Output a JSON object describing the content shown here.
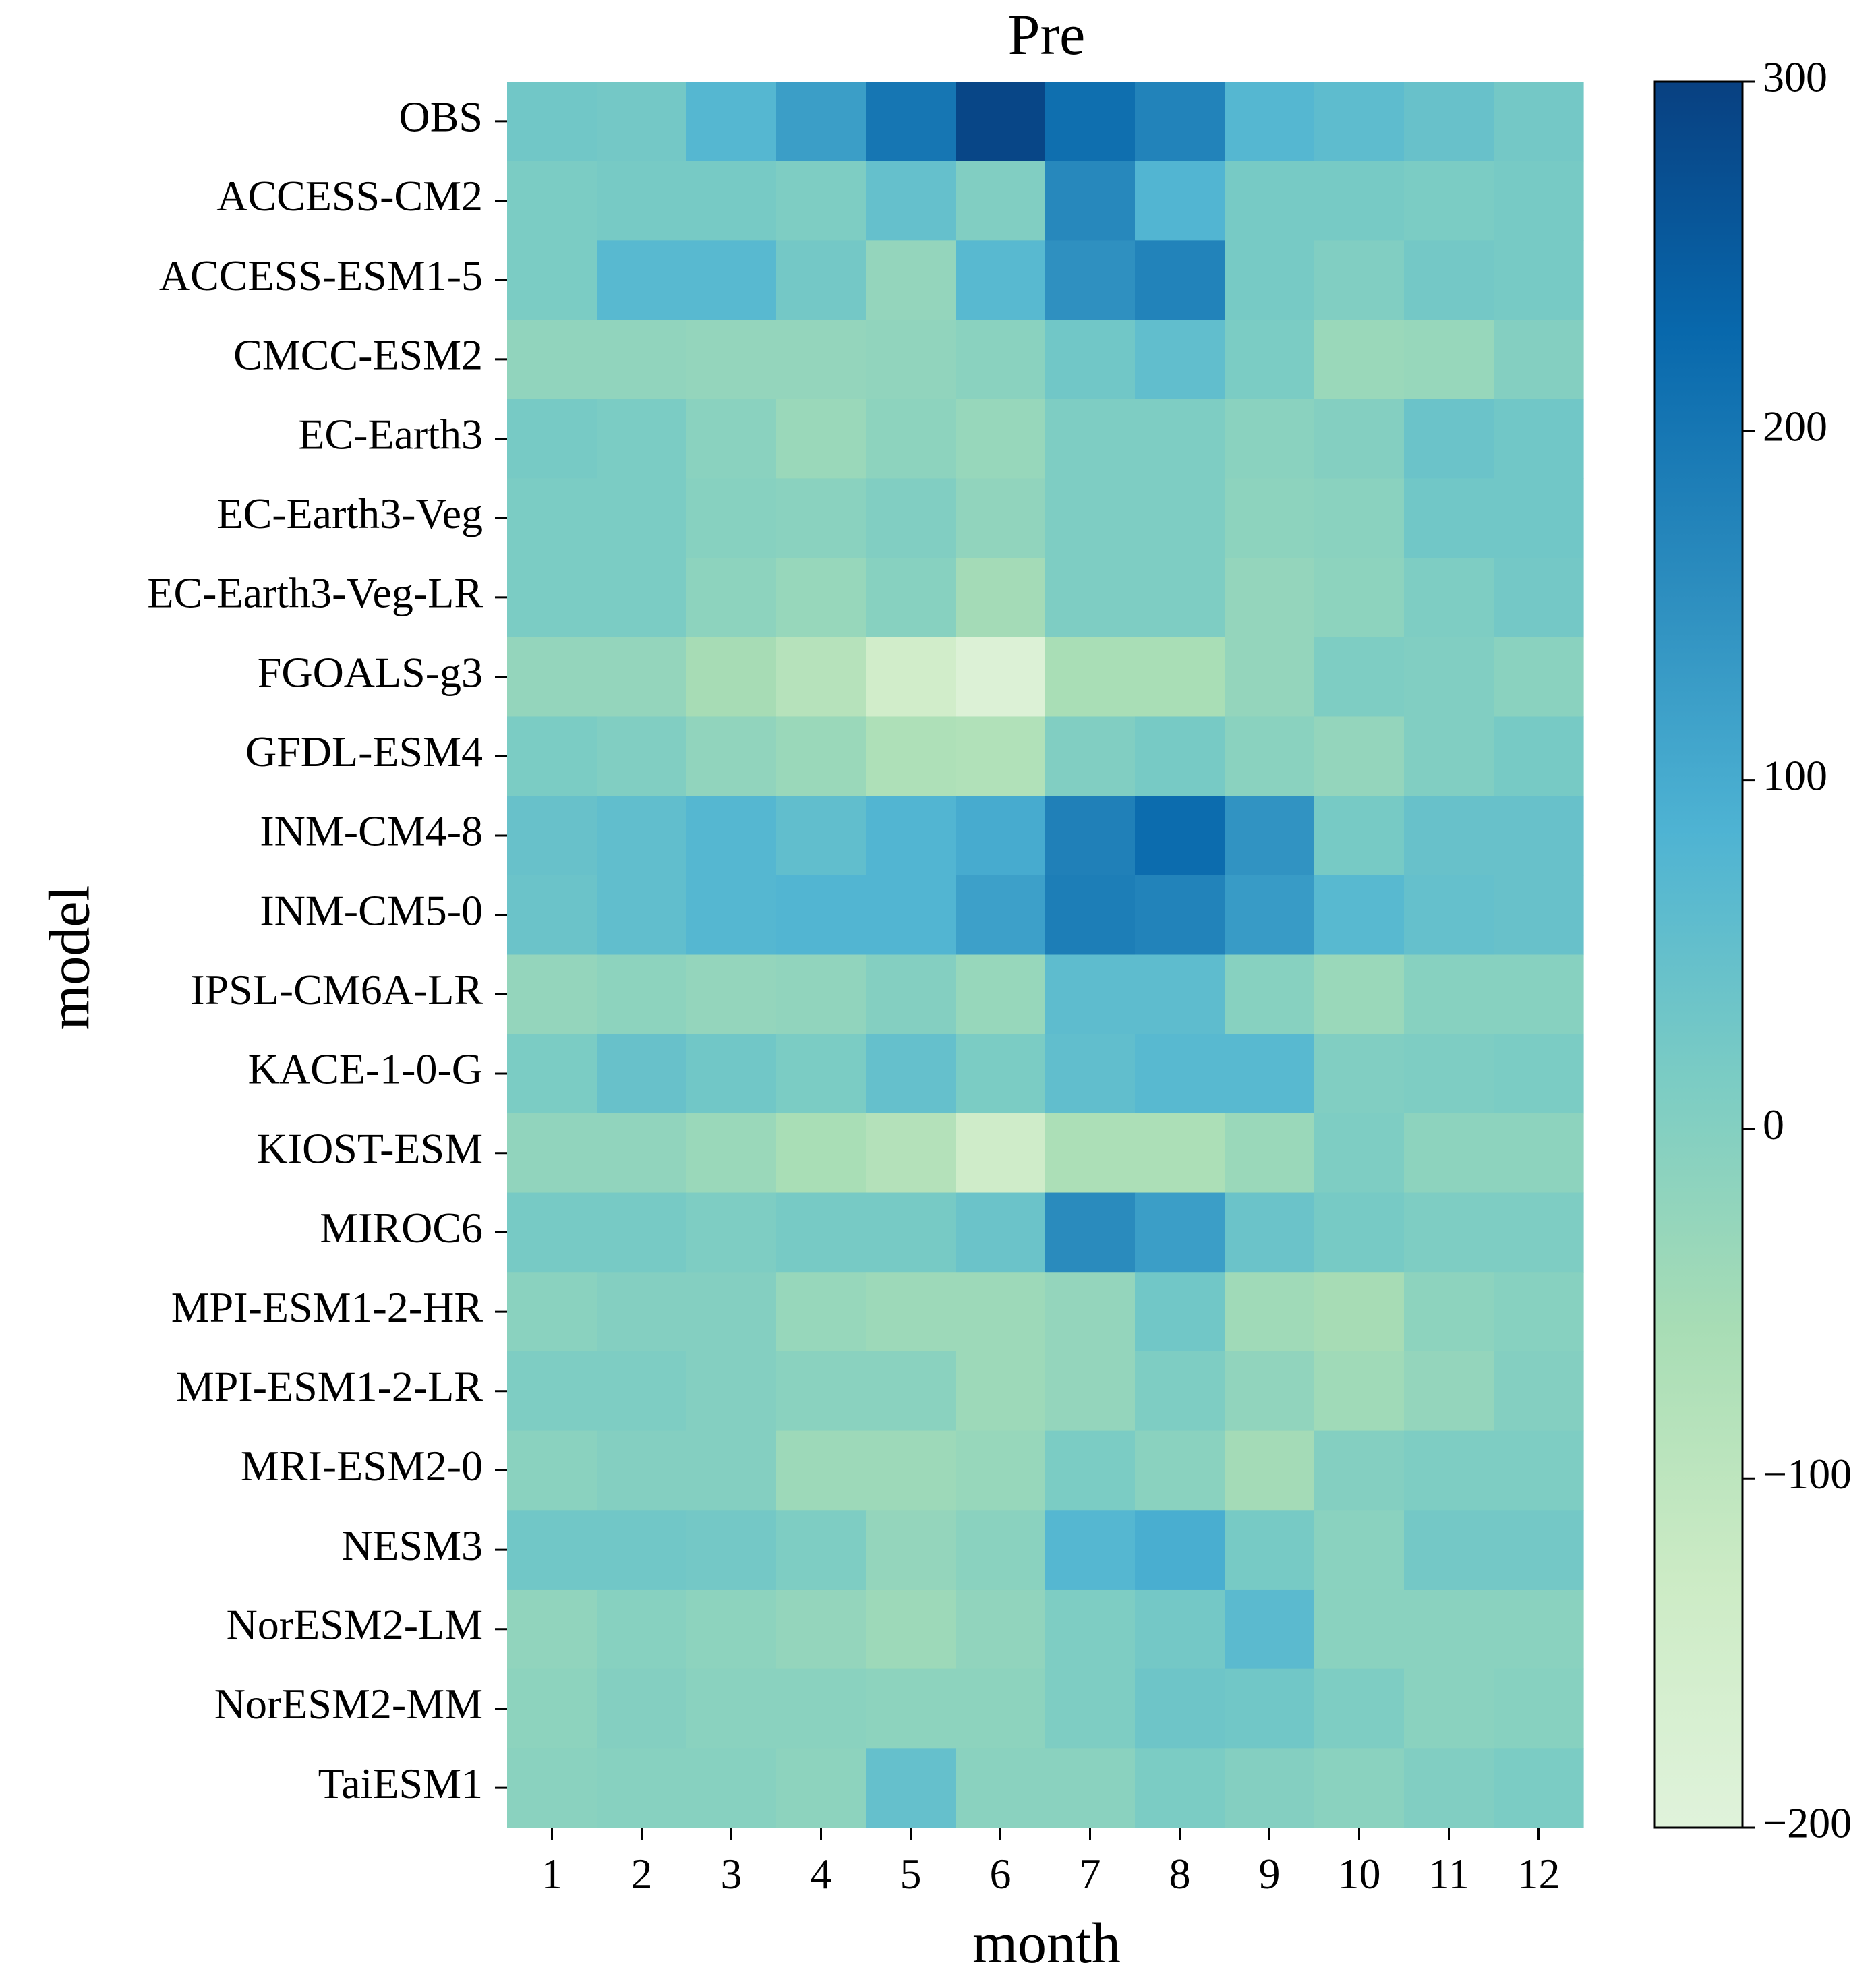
{
  "chart_data": {
    "type": "heatmap",
    "title": "Pre",
    "xlabel": "month",
    "ylabel": "model",
    "x_categories": [
      "1",
      "2",
      "3",
      "4",
      "5",
      "6",
      "7",
      "8",
      "9",
      "10",
      "11",
      "12"
    ],
    "y_categories": [
      "OBS",
      "ACCESS-CM2",
      "ACCESS-ESM1-5",
      "CMCC-ESM2",
      "EC-Earth3",
      "EC-Earth3-Veg",
      "EC-Earth3-Veg-LR",
      "FGOALS-g3",
      "GFDL-ESM4",
      "INM-CM4-8",
      "INM-CM5-0",
      "IPSL-CM6A-LR",
      "KACE-1-0-G",
      "KIOST-ESM",
      "MIROC6",
      "MPI-ESM1-2-HR",
      "MPI-ESM1-2-LR",
      "MRI-ESM2-0",
      "NESM3",
      "NorESM2-LM",
      "NorESM2-MM",
      "TaiESM1"
    ],
    "values": [
      [
        30,
        25,
        75,
        125,
        200,
        290,
        215,
        175,
        75,
        60,
        45,
        25
      ],
      [
        15,
        20,
        20,
        10,
        50,
        5,
        165,
        80,
        20,
        20,
        15,
        20
      ],
      [
        15,
        70,
        70,
        25,
        -25,
        70,
        150,
        175,
        20,
        5,
        25,
        20
      ],
      [
        -20,
        -20,
        -25,
        -25,
        -20,
        -10,
        30,
        55,
        15,
        -35,
        -30,
        0
      ],
      [
        20,
        15,
        -10,
        -35,
        -15,
        -30,
        10,
        10,
        -10,
        0,
        40,
        30
      ],
      [
        15,
        15,
        -5,
        -10,
        5,
        -20,
        10,
        10,
        -15,
        -10,
        30,
        30
      ],
      [
        15,
        15,
        -15,
        -30,
        -5,
        -50,
        10,
        10,
        -25,
        -15,
        10,
        25
      ],
      [
        -25,
        -25,
        -55,
        -85,
        -145,
        -185,
        -60,
        -60,
        -25,
        10,
        5,
        -10
      ],
      [
        15,
        5,
        -20,
        -35,
        -70,
        -75,
        5,
        20,
        -10,
        -25,
        5,
        20
      ],
      [
        45,
        55,
        75,
        55,
        80,
        100,
        180,
        220,
        145,
        20,
        45,
        45
      ],
      [
        40,
        55,
        75,
        80,
        80,
        120,
        185,
        175,
        130,
        70,
        50,
        45
      ],
      [
        -25,
        -15,
        -25,
        -20,
        0,
        -30,
        60,
        60,
        -5,
        -35,
        -5,
        -5
      ],
      [
        15,
        45,
        30,
        15,
        50,
        15,
        55,
        70,
        70,
        5,
        10,
        15
      ],
      [
        -20,
        -20,
        -35,
        -60,
        -80,
        -140,
        -65,
        -65,
        -35,
        10,
        -15,
        -15
      ],
      [
        20,
        20,
        10,
        20,
        20,
        40,
        160,
        125,
        40,
        20,
        10,
        10
      ],
      [
        -10,
        0,
        0,
        -30,
        -40,
        -40,
        -25,
        30,
        -45,
        -55,
        -15,
        -5
      ],
      [
        10,
        10,
        0,
        -10,
        -10,
        -40,
        -25,
        10,
        -20,
        -45,
        -25,
        0
      ],
      [
        -10,
        0,
        0,
        -40,
        -40,
        -30,
        15,
        -10,
        -50,
        0,
        10,
        10
      ],
      [
        30,
        30,
        25,
        10,
        -25,
        -10,
        75,
        95,
        20,
        -10,
        25,
        25
      ],
      [
        -20,
        -5,
        -15,
        -25,
        -40,
        -20,
        10,
        25,
        65,
        -10,
        -10,
        -10
      ],
      [
        -15,
        0,
        -10,
        -10,
        -15,
        -15,
        10,
        35,
        30,
        10,
        -10,
        -5
      ],
      [
        -10,
        -5,
        -5,
        -15,
        50,
        -10,
        -10,
        15,
        0,
        -10,
        5,
        15
      ]
    ],
    "colorbar": {
      "range": [
        -200,
        300
      ],
      "ticks": [
        300,
        200,
        100,
        0,
        -100,
        -200
      ],
      "tick_labels": [
        "300",
        "200",
        "100",
        "0",
        "−100",
        "−200"
      ],
      "colormap": "GnBu",
      "stops": [
        "#e0f3db",
        "#ccebc5",
        "#a8ddb5",
        "#7bccc4",
        "#4eb3d3",
        "#2b8cbe",
        "#0868ac",
        "#084081"
      ]
    },
    "grid": false
  }
}
